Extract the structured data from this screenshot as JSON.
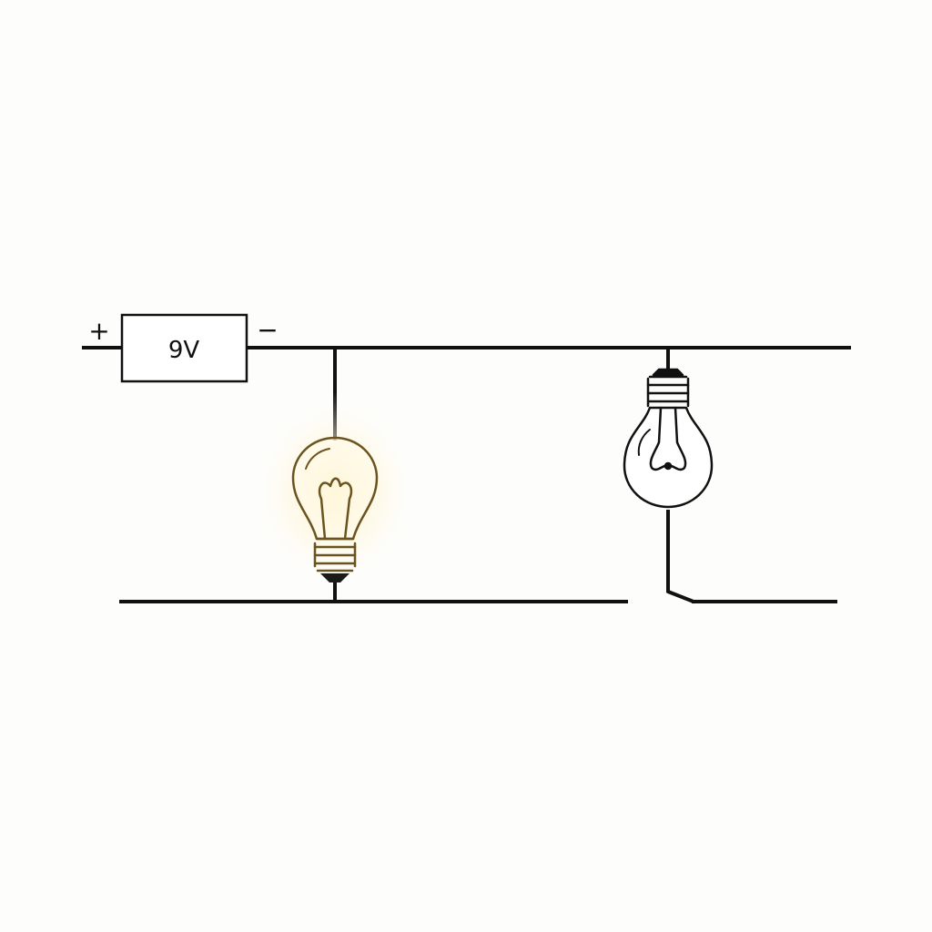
{
  "circuit": {
    "battery": {
      "label": "9V",
      "positive_sign": "+",
      "negative_sign": "−"
    },
    "bulbs": [
      {
        "name": "lit-bulb",
        "state": "on"
      },
      {
        "name": "unlit-bulb",
        "state": "off"
      }
    ],
    "switch_state": "open"
  },
  "colors": {
    "wire": "#111111",
    "lit_bulb": "#6b5320",
    "glow": "#fff1b8",
    "background": "#fdfdfc"
  }
}
